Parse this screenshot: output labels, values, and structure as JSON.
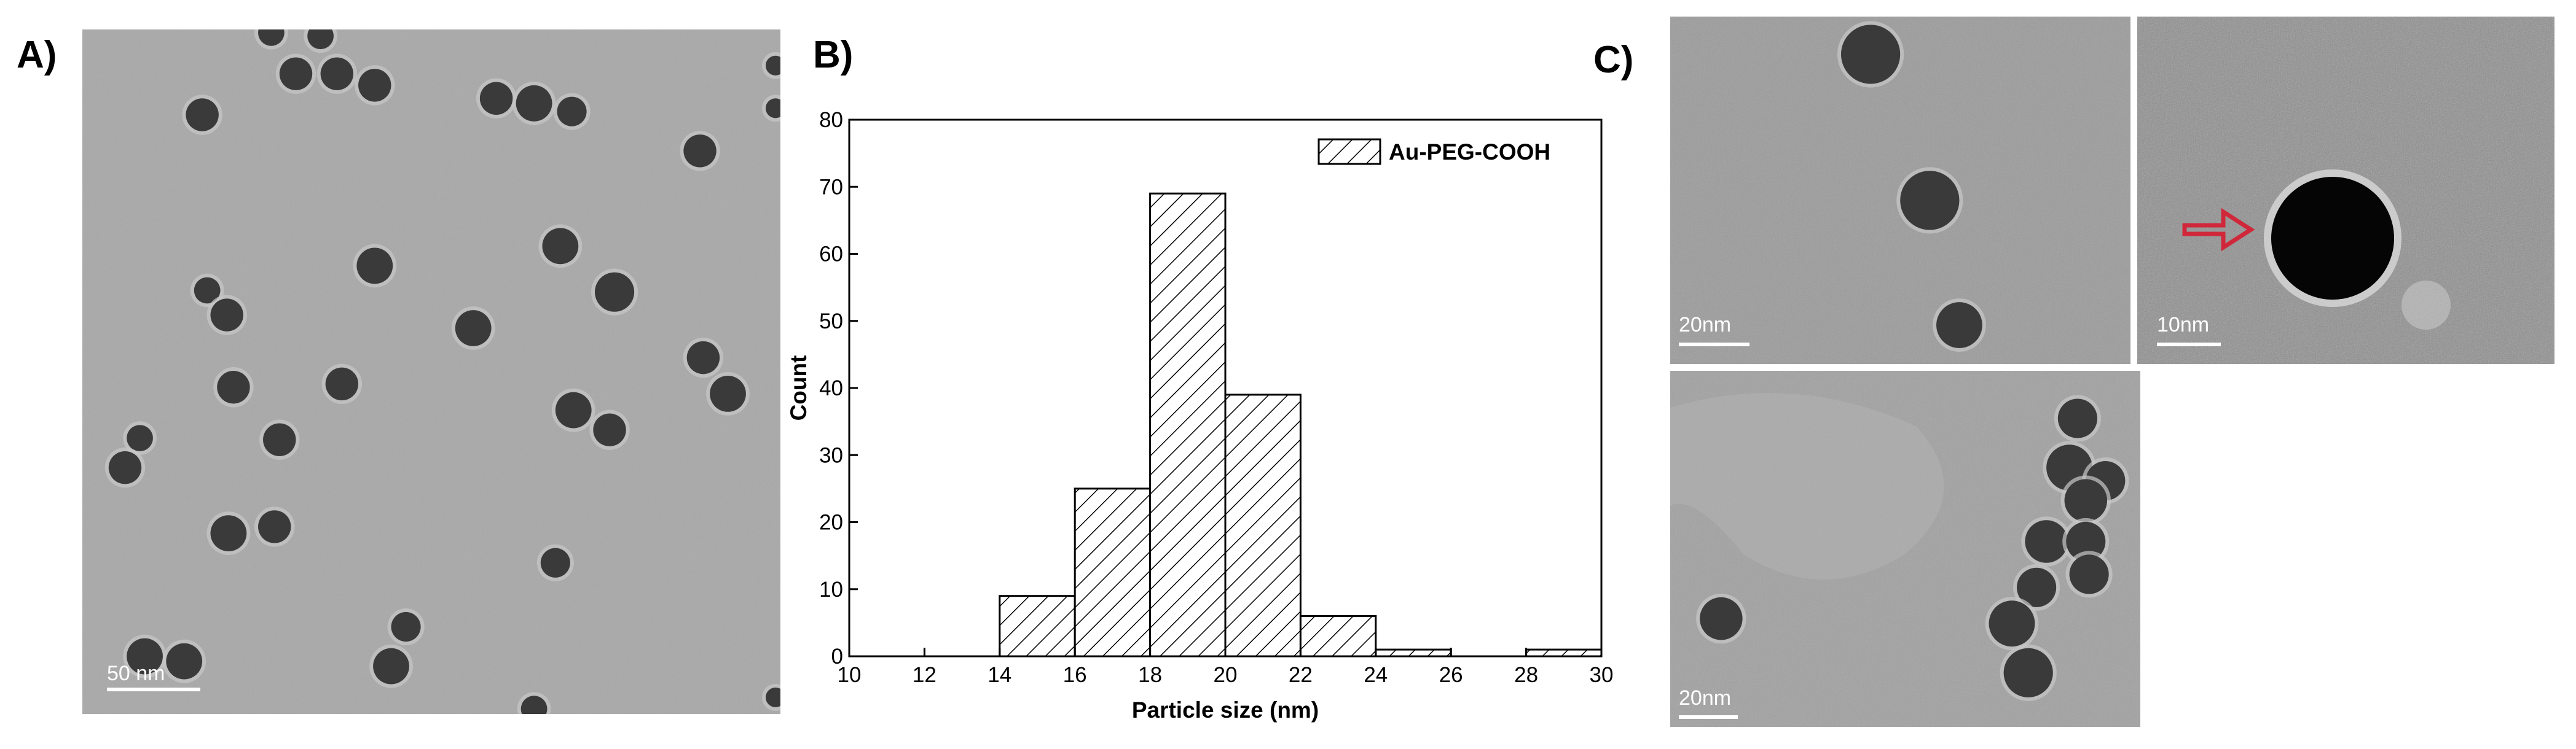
{
  "panels": {
    "a": {
      "label": "A)",
      "scale_bar": "50 nm"
    },
    "b": {
      "label": "B)"
    },
    "c": {
      "label": "C)",
      "scale_bars": [
        "20nm",
        "10nm",
        "20nm"
      ]
    }
  },
  "chart_data": {
    "type": "histogram",
    "x_label": "Particle size (nm)",
    "y_label": "Count",
    "bins": [
      14,
      16,
      18,
      20,
      22,
      24,
      26,
      28,
      30
    ],
    "series": [
      {
        "name": "Au-PEG-COOH",
        "color": "#000000",
        "values": [
          9,
          25,
          69,
          39,
          6,
          1,
          0,
          1
        ]
      }
    ],
    "xlim": [
      10,
      30
    ],
    "xticks": [
      10,
      12,
      14,
      16,
      18,
      20,
      22,
      24,
      26,
      28,
      30
    ],
    "ylim": [
      0,
      80
    ],
    "yticks": [
      0,
      10,
      20,
      30,
      40,
      50,
      60,
      70,
      80
    ],
    "legend": "upper right",
    "hatch": true
  }
}
